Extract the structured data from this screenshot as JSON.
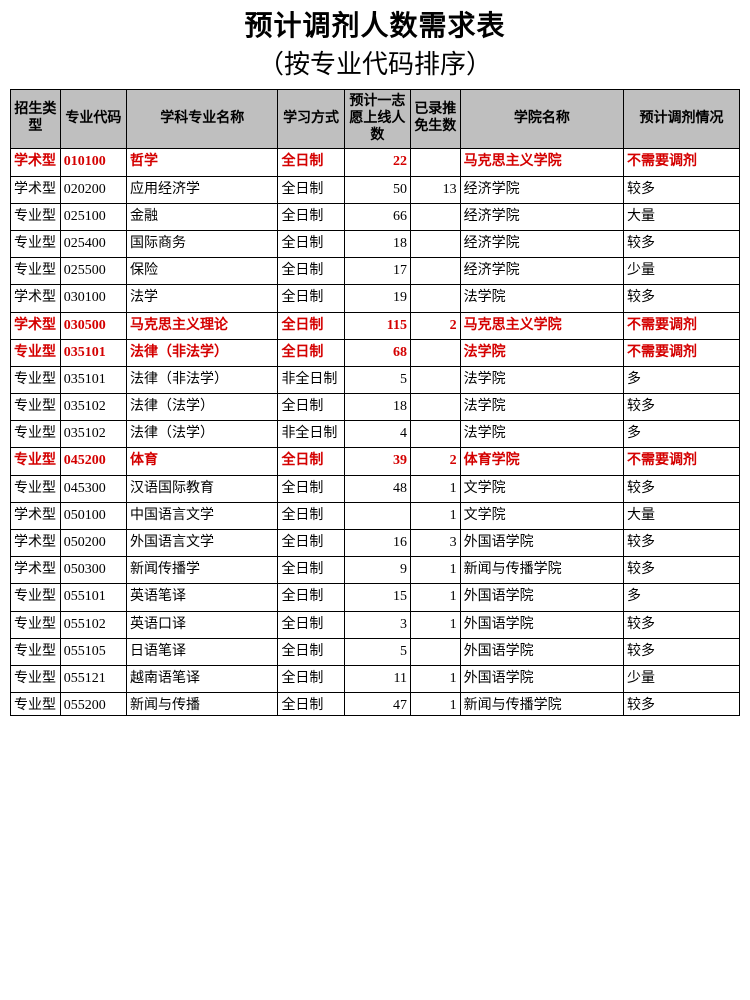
{
  "title1": "预计调剂人数需求表",
  "title2": "（按专业代码排序）",
  "headers": {
    "type": "招生类型",
    "code": "专业代码",
    "major": "学科专业名称",
    "study": "学习方式",
    "first": "预计一志愿上线人数",
    "exempt": "已录推免生数",
    "college": "学院名称",
    "adjust": "预计调剂情况"
  },
  "rows": [
    {
      "type": "学术型",
      "code": "010100",
      "major": "哲学",
      "study": "全日制",
      "first": "22",
      "exempt": "",
      "college": "马克思主义学院",
      "adjust": "不需要调剂",
      "hl": true
    },
    {
      "type": "学术型",
      "code": "020200",
      "major": "应用经济学",
      "study": "全日制",
      "first": "50",
      "exempt": "13",
      "college": "经济学院",
      "adjust": "较多",
      "hl": false
    },
    {
      "type": "专业型",
      "code": "025100",
      "major": "金融",
      "study": "全日制",
      "first": "66",
      "exempt": "",
      "college": "经济学院",
      "adjust": "大量",
      "hl": false
    },
    {
      "type": "专业型",
      "code": "025400",
      "major": "国际商务",
      "study": "全日制",
      "first": "18",
      "exempt": "",
      "college": "经济学院",
      "adjust": "较多",
      "hl": false
    },
    {
      "type": "专业型",
      "code": "025500",
      "major": "保险",
      "study": "全日制",
      "first": "17",
      "exempt": "",
      "college": "经济学院",
      "adjust": "少量",
      "hl": false
    },
    {
      "type": "学术型",
      "code": "030100",
      "major": "法学",
      "study": "全日制",
      "first": "19",
      "exempt": "",
      "college": "法学院",
      "adjust": "较多",
      "hl": false
    },
    {
      "type": "学术型",
      "code": "030500",
      "major": "马克思主义理论",
      "study": "全日制",
      "first": "115",
      "exempt": "2",
      "college": "马克思主义学院",
      "adjust": "不需要调剂",
      "hl": true
    },
    {
      "type": "专业型",
      "code": "035101",
      "major": "法律（非法学）",
      "study": "全日制",
      "first": "68",
      "exempt": "",
      "college": "法学院",
      "adjust": "不需要调剂",
      "hl": true
    },
    {
      "type": "专业型",
      "code": "035101",
      "major": "法律（非法学）",
      "study": "非全日制",
      "first": "5",
      "exempt": "",
      "college": "法学院",
      "adjust": "多",
      "hl": false
    },
    {
      "type": "专业型",
      "code": "035102",
      "major": "法律（法学）",
      "study": "全日制",
      "first": "18",
      "exempt": "",
      "college": "法学院",
      "adjust": "较多",
      "hl": false
    },
    {
      "type": "专业型",
      "code": "035102",
      "major": "法律（法学）",
      "study": "非全日制",
      "first": "4",
      "exempt": "",
      "college": "法学院",
      "adjust": "多",
      "hl": false
    },
    {
      "type": "专业型",
      "code": "045200",
      "major": "体育",
      "study": "全日制",
      "first": "39",
      "exempt": "2",
      "college": "体育学院",
      "adjust": "不需要调剂",
      "hl": true
    },
    {
      "type": "专业型",
      "code": "045300",
      "major": "汉语国际教育",
      "study": "全日制",
      "first": "48",
      "exempt": "1",
      "college": "文学院",
      "adjust": "较多",
      "hl": false
    },
    {
      "type": "学术型",
      "code": "050100",
      "major": "中国语言文学",
      "study": "全日制",
      "first": "",
      "exempt": "1",
      "college": "文学院",
      "adjust": "大量",
      "hl": false
    },
    {
      "type": "学术型",
      "code": "050200",
      "major": "外国语言文学",
      "study": "全日制",
      "first": "16",
      "exempt": "3",
      "college": "外国语学院",
      "adjust": "较多",
      "hl": false
    },
    {
      "type": "学术型",
      "code": "050300",
      "major": "新闻传播学",
      "study": "全日制",
      "first": "9",
      "exempt": "1",
      "college": "新闻与传播学院",
      "adjust": "较多",
      "hl": false
    },
    {
      "type": "专业型",
      "code": "055101",
      "major": "英语笔译",
      "study": "全日制",
      "first": "15",
      "exempt": "1",
      "college": "外国语学院",
      "adjust": "多",
      "hl": false
    },
    {
      "type": "专业型",
      "code": "055102",
      "major": "英语口译",
      "study": "全日制",
      "first": "3",
      "exempt": "1",
      "college": "外国语学院",
      "adjust": "较多",
      "hl": false
    },
    {
      "type": "专业型",
      "code": "055105",
      "major": "日语笔译",
      "study": "全日制",
      "first": "5",
      "exempt": "",
      "college": "外国语学院",
      "adjust": "较多",
      "hl": false
    },
    {
      "type": "专业型",
      "code": "055121",
      "major": "越南语笔译",
      "study": "全日制",
      "first": "11",
      "exempt": "1",
      "college": "外国语学院",
      "adjust": "少量",
      "hl": false
    },
    {
      "type": "专业型",
      "code": "055200",
      "major": "新闻与传播",
      "study": "全日制",
      "first": "47",
      "exempt": "1",
      "college": "新闻与传播学院",
      "adjust": "较多",
      "hl": false
    }
  ]
}
